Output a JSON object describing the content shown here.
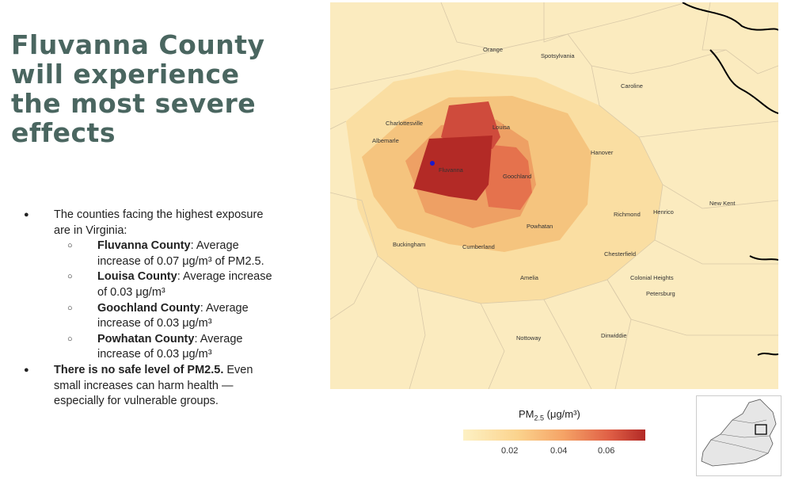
{
  "slide": {
    "title": "Fluvanna County will experience the most severe effects",
    "bullet1_text": "The counties facing the highest exposure are in Virginia:",
    "counties": [
      {
        "name": "Fluvanna County",
        "rest": ": Average increase of 0.07 μg/m³ of PM2.5."
      },
      {
        "name": "Louisa County",
        "rest": ": Average increase of 0.03 μg/m³"
      },
      {
        "name": "Goochland County",
        "rest": ": Average increase of 0.03 μg/m³"
      },
      {
        "name": "Powhatan County",
        "rest": ": Average increase of 0.03 μg/m³"
      }
    ],
    "bullet2_bold": "There is no safe level of PM2.5.",
    "bullet2_rest": " Even small increases can harm health — especially for vulnerable groups."
  },
  "map": {
    "labels": [
      "Orange",
      "Spotsylvania",
      "Caroline",
      "Charlottesville",
      "Louisa",
      "Albemarle",
      "Hanover",
      "Fluvanna",
      "Goochland",
      "Richmond",
      "Henrico",
      "New Kent",
      "Powhatan",
      "Buckingham",
      "Cumberland",
      "Chesterfield",
      "Colonial Heights",
      "Amelia",
      "Petersburg",
      "Nottoway",
      "Dinwiddie"
    ],
    "colors": {
      "low": "#fdf1c4",
      "mid": "#f5a366",
      "high": "#b32a26",
      "point": "#1a1acc"
    }
  },
  "legend": {
    "title": "PM",
    "subscript": "2.5",
    "unit": " (μg/m³)",
    "ticks": [
      "0.02",
      "0.04",
      "0.06"
    ]
  }
}
